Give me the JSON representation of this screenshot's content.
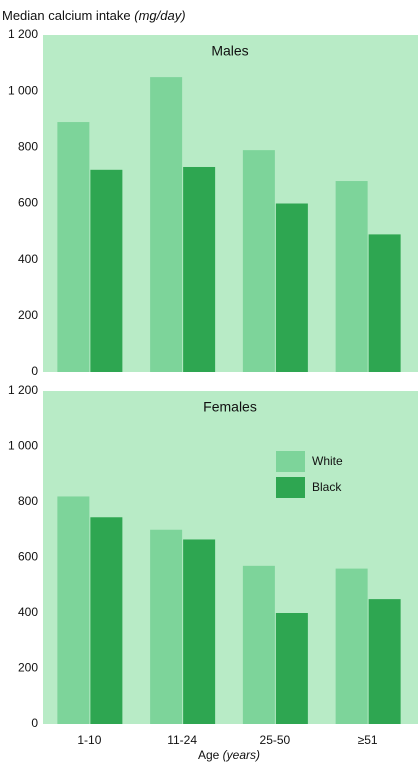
{
  "chart_data": [
    {
      "type": "bar",
      "title": "Median calcium intake",
      "title_unit": "(mg/day)",
      "subtitle": "Males",
      "categories": [
        null,
        null,
        null,
        null
      ],
      "series": [
        {
          "color": "#7dd49a",
          "values": [
            890,
            1050,
            790,
            680
          ]
        },
        {
          "color": "#2ea651",
          "values": [
            720,
            730,
            600,
            490
          ]
        }
      ],
      "ylim": [
        0,
        1200
      ],
      "yticks": [
        0,
        200,
        400,
        600,
        800,
        {
          "value": 1000,
          "label": "1 000"
        },
        {
          "value": 1200,
          "label": "1 200"
        }
      ],
      "background": "#b8ebc6",
      "grid": false
    },
    {
      "type": "bar",
      "subtitle": "Females",
      "x_label": "Age",
      "x_label_unit": "(years)",
      "categories": [
        "1-10",
        "11-24",
        "25-50",
        "≥51"
      ],
      "series": [
        {
          "name": "White",
          "color": "#7dd49a",
          "values": [
            820,
            700,
            570,
            560
          ]
        },
        {
          "name": "Black",
          "color": "#2ea651",
          "values": [
            745,
            665,
            400,
            450
          ]
        }
      ],
      "ylim": [
        0,
        1200
      ],
      "yticks": [
        0,
        200,
        400,
        600,
        800,
        {
          "value": 1000,
          "label": "1 000"
        },
        {
          "value": 1200,
          "label": "1 200"
        }
      ],
      "background": "#b8ebc6",
      "grid": false,
      "legend": "upper right"
    }
  ]
}
